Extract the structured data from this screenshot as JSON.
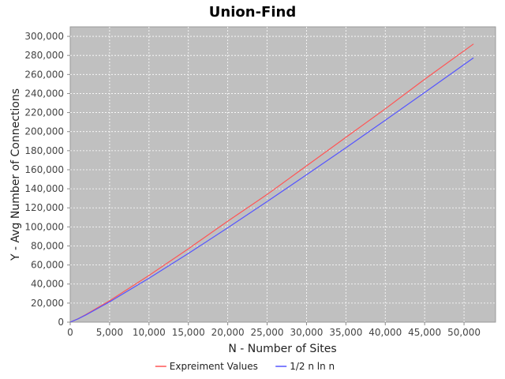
{
  "chart_data": {
    "type": "line",
    "title": "Union-Find",
    "xlabel": "N - Number of Sites",
    "ylabel": "Y - Avg Number of Connections",
    "xlim": [
      0,
      54000
    ],
    "ylim": [
      0,
      310000
    ],
    "x_ticks": [
      0,
      5000,
      10000,
      15000,
      20000,
      25000,
      30000,
      35000,
      40000,
      45000,
      50000
    ],
    "x_tick_labels": [
      "0",
      "5,000",
      "10,000",
      "15,000",
      "20,000",
      "25,000",
      "30,000",
      "35,000",
      "40,000",
      "45,000",
      "50,000"
    ],
    "y_ticks": [
      0,
      20000,
      40000,
      60000,
      80000,
      100000,
      120000,
      140000,
      160000,
      180000,
      200000,
      220000,
      240000,
      260000,
      280000,
      300000
    ],
    "y_tick_labels": [
      "0",
      "20,000",
      "40,000",
      "60,000",
      "80,000",
      "100,000",
      "120,000",
      "140,000",
      "160,000",
      "180,000",
      "200,000",
      "220,000",
      "240,000",
      "260,000",
      "280,000",
      "300,000"
    ],
    "grid": true,
    "legend_position": "bottom",
    "plot_background": "#c0c0c0",
    "series": [
      {
        "name": "Expreiment Values",
        "color": "#ff5555",
        "x": [
          0,
          1000,
          2000,
          5000,
          10000,
          15000,
          20000,
          25000,
          30000,
          35000,
          40000,
          45000,
          51200
        ],
        "y": [
          0,
          3600,
          8000,
          22500,
          49000,
          77000,
          106000,
          134000,
          164000,
          194000,
          224000,
          255000,
          292000
        ]
      },
      {
        "name": "1/2 n ln n",
        "color": "#5555ff",
        "x": [
          0,
          1000,
          2000,
          5000,
          10000,
          15000,
          20000,
          25000,
          30000,
          35000,
          40000,
          45000,
          51200
        ],
        "y": [
          0,
          3454,
          7601,
          21293,
          46052,
          72121,
          99035,
          126590,
          154640,
          183100,
          211930,
          241100,
          277490
        ]
      }
    ]
  }
}
